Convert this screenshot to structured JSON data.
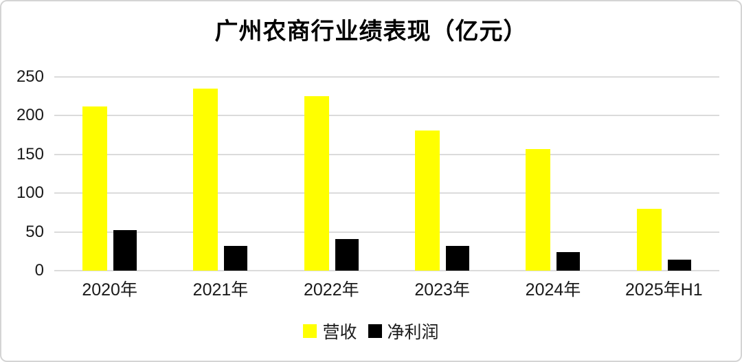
{
  "chart_data": {
    "type": "bar",
    "title": "广州农商行业绩表现（亿元）",
    "categories": [
      "2020年",
      "2021年",
      "2022年",
      "2023年",
      "2024年",
      "2025年H1"
    ],
    "series": [
      {
        "key": "revenue",
        "name": "营收",
        "color": "#FFFF00",
        "values": [
          212,
          235,
          225,
          181,
          157,
          80
        ]
      },
      {
        "key": "net-profit",
        "name": "净利润",
        "color": "#000000",
        "values": [
          52,
          32,
          41,
          32,
          24,
          14
        ]
      }
    ],
    "xlabel": "",
    "ylabel": "",
    "ylim": [
      0,
      250
    ],
    "yticks": [
      0,
      50,
      100,
      150,
      200,
      250
    ],
    "grid": true,
    "gridline_color": "#DBDBDB",
    "axis_text_color": "#1a1a1a",
    "background_color": "#FFFFFF",
    "border_color": "#D4D4D4",
    "legend_position": "bottom"
  }
}
